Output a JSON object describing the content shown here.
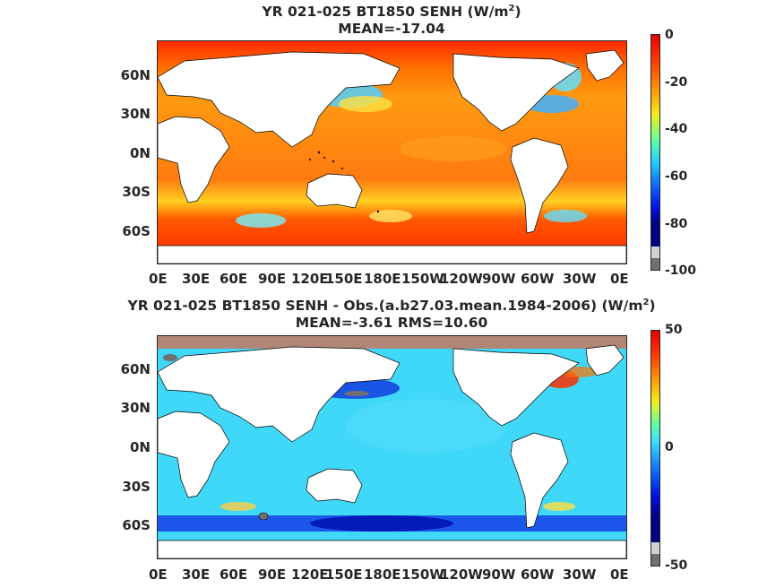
{
  "top": {
    "title_line1": "YR 021-025 BT1850  SENH (W/m",
    "title_sup": "2",
    "title_close": ")",
    "title_line2": "MEAN=-17.04",
    "colorbar_ticks": [
      "0",
      "-20",
      "-40",
      "-60",
      "-80",
      "-100"
    ],
    "colorbar_range": [
      -100,
      0
    ]
  },
  "bottom": {
    "title_line1": "YR 021-025 BT1850 SENH - Obs.(a.b27.03.mean.1984-2006) (W/m",
    "title_sup": "2",
    "title_close": ")",
    "title_line2": "MEAN=-3.61 RMS=10.60",
    "colorbar_ticks": [
      "50",
      "0",
      "-50"
    ],
    "colorbar_range": [
      -50,
      50
    ]
  },
  "lat_labels": [
    "60N",
    "30N",
    "0N",
    "30S",
    "60S"
  ],
  "lon_labels": [
    "0E",
    "30E",
    "60E",
    "90E",
    "120E",
    "150E",
    "180E",
    "150W",
    "120W",
    "90W",
    "60W",
    "30W",
    "0E"
  ],
  "colormap": "jet"
}
